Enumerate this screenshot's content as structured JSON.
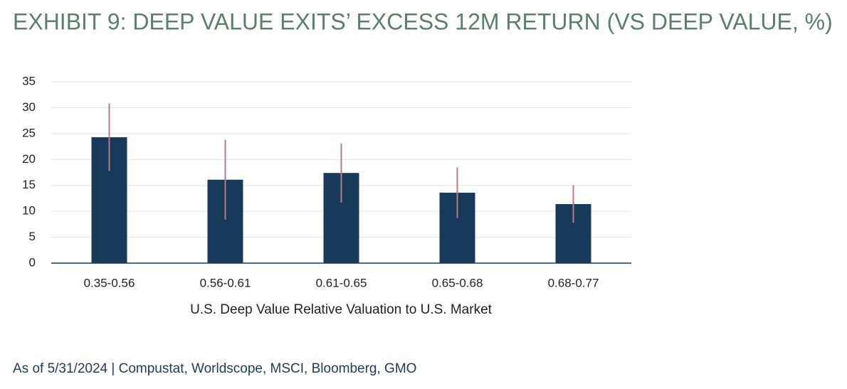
{
  "chart_data": {
    "type": "bar",
    "title": "EXHIBIT 9: DEEP VALUE EXITS’ EXCESS 12M RETURN (VS DEEP VALUE, %)",
    "x_label": "U.S. Deep Value Relative Valuation to U.S. Market",
    "categories": [
      "0.35-0.56",
      "0.56-0.61",
      "0.61-0.65",
      "0.65-0.68",
      "0.68-0.77"
    ],
    "values": [
      24.3,
      16.1,
      17.4,
      13.6,
      11.4
    ],
    "errors": [
      6.5,
      7.7,
      5.7,
      4.9,
      3.6
    ],
    "color": "#173a5a",
    "error_color": "#b57c86",
    "ylim": [
      0,
      35
    ],
    "yticks": [
      0,
      5,
      10,
      15,
      20,
      25,
      30,
      35
    ],
    "grid": true,
    "note": "As of 5/31/2024 | Compustat, Worldscope, MSCI, Bloomberg, GMO"
  }
}
